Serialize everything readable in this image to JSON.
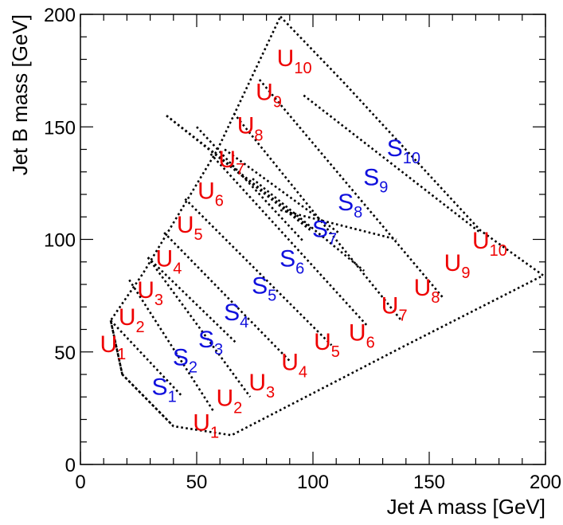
{
  "chart_data": {
    "type": "diagram",
    "xlabel": "Jet A mass [GeV]",
    "ylabel": "Jet B mass [GeV]",
    "xlim": [
      0,
      200
    ],
    "ylim": [
      0,
      200
    ],
    "x_ticks": [
      0,
      50,
      100,
      150,
      200
    ],
    "y_ticks": [
      0,
      50,
      100,
      150,
      200
    ],
    "colors": {
      "U": "#ee0000",
      "S": "#1010dd",
      "lines": "#000000"
    },
    "outer_boundary": [
      [
        86,
        199
      ],
      [
        113,
        170
      ],
      [
        172,
        104
      ],
      [
        199,
        84
      ],
      [
        140,
        53
      ],
      [
        65,
        13
      ],
      [
        40,
        17
      ],
      [
        18,
        40
      ],
      [
        13,
        64
      ],
      [
        27,
        85
      ],
      [
        59,
        140
      ]
    ],
    "internal_lines": [
      [
        [
          13,
          64
        ],
        [
          18,
          40
        ]
      ],
      [
        [
          18,
          40
        ],
        [
          40,
          17
        ]
      ],
      [
        [
          13,
          64
        ],
        [
          44,
          30
        ]
      ],
      [
        [
          21,
          82
        ],
        [
          57,
          24
        ]
      ],
      [
        [
          29,
          92
        ],
        [
          67,
          54
        ]
      ],
      [
        [
          29,
          92
        ],
        [
          73,
          30
        ]
      ],
      [
        [
          36,
          103
        ],
        [
          90,
          46
        ]
      ],
      [
        [
          45,
          118
        ],
        [
          108,
          53
        ]
      ],
      [
        [
          56,
          138
        ],
        [
          123,
          62
        ]
      ],
      [
        [
          66,
          156
        ],
        [
          138,
          64
        ]
      ],
      [
        [
          77,
          171
        ],
        [
          156,
          74
        ]
      ],
      [
        [
          96,
          164
        ],
        [
          172,
          103
        ]
      ],
      [
        [
          37,
          155
        ],
        [
          99,
          104
        ]
      ],
      [
        [
          37,
          155
        ],
        [
          99,
          105
        ]
      ],
      [
        [
          50,
          150
        ],
        [
          96,
          99
        ]
      ],
      [
        [
          62,
          140
        ],
        [
          111,
          103
        ]
      ],
      [
        [
          74,
          127
        ],
        [
          122,
          86
        ]
      ],
      [
        [
          86,
          113
        ],
        [
          136,
          100
        ]
      ]
    ],
    "regions": [
      {
        "name": "U",
        "sub": "1",
        "x": 14,
        "y": 50,
        "color_key": "U"
      },
      {
        "name": "U",
        "sub": "2",
        "x": 22,
        "y": 62,
        "color_key": "U"
      },
      {
        "name": "U",
        "sub": "3",
        "x": 30,
        "y": 74,
        "color_key": "U"
      },
      {
        "name": "U",
        "sub": "4",
        "x": 38,
        "y": 88,
        "color_key": "U"
      },
      {
        "name": "U",
        "sub": "5",
        "x": 47,
        "y": 103,
        "color_key": "U"
      },
      {
        "name": "U",
        "sub": "6",
        "x": 56,
        "y": 118,
        "color_key": "U"
      },
      {
        "name": "U",
        "sub": "7",
        "x": 65,
        "y": 132,
        "color_key": "U"
      },
      {
        "name": "U",
        "sub": "8",
        "x": 73,
        "y": 147,
        "color_key": "U"
      },
      {
        "name": "U",
        "sub": "9",
        "x": 81,
        "y": 162,
        "color_key": "U"
      },
      {
        "name": "U",
        "sub": "10",
        "x": 92,
        "y": 177,
        "color_key": "U"
      },
      {
        "name": "S",
        "sub": "1",
        "x": 36,
        "y": 31,
        "color_key": "S"
      },
      {
        "name": "S",
        "sub": "2",
        "x": 45,
        "y": 44,
        "color_key": "S"
      },
      {
        "name": "S",
        "sub": "3",
        "x": 56,
        "y": 52,
        "color_key": "S"
      },
      {
        "name": "S",
        "sub": "4",
        "x": 67,
        "y": 64,
        "color_key": "S"
      },
      {
        "name": "S",
        "sub": "5",
        "x": 79,
        "y": 76,
        "color_key": "S"
      },
      {
        "name": "S",
        "sub": "6",
        "x": 91,
        "y": 88,
        "color_key": "S"
      },
      {
        "name": "S",
        "sub": "7",
        "x": 105,
        "y": 101,
        "color_key": "S"
      },
      {
        "name": "S",
        "sub": "8",
        "x": 116,
        "y": 113,
        "color_key": "S"
      },
      {
        "name": "S",
        "sub": "9",
        "x": 127,
        "y": 124,
        "color_key": "S"
      },
      {
        "name": "S",
        "sub": "10",
        "x": 139,
        "y": 137,
        "color_key": "S"
      },
      {
        "name": "U",
        "sub": "1",
        "x": 54,
        "y": 15,
        "color_key": "U"
      },
      {
        "name": "U",
        "sub": "2",
        "x": 64,
        "y": 26,
        "color_key": "U"
      },
      {
        "name": "U",
        "sub": "3",
        "x": 78,
        "y": 33,
        "color_key": "U"
      },
      {
        "name": "U",
        "sub": "4",
        "x": 92,
        "y": 42,
        "color_key": "U"
      },
      {
        "name": "U",
        "sub": "5",
        "x": 106,
        "y": 51,
        "color_key": "U"
      },
      {
        "name": "U",
        "sub": "6",
        "x": 121,
        "y": 55,
        "color_key": "U"
      },
      {
        "name": "U",
        "sub": "7",
        "x": 135,
        "y": 67,
        "color_key": "U"
      },
      {
        "name": "U",
        "sub": "8",
        "x": 149,
        "y": 75,
        "color_key": "U"
      },
      {
        "name": "U",
        "sub": "9",
        "x": 162,
        "y": 86,
        "color_key": "U"
      },
      {
        "name": "U",
        "sub": "10",
        "x": 176,
        "y": 96,
        "color_key": "U"
      }
    ]
  }
}
